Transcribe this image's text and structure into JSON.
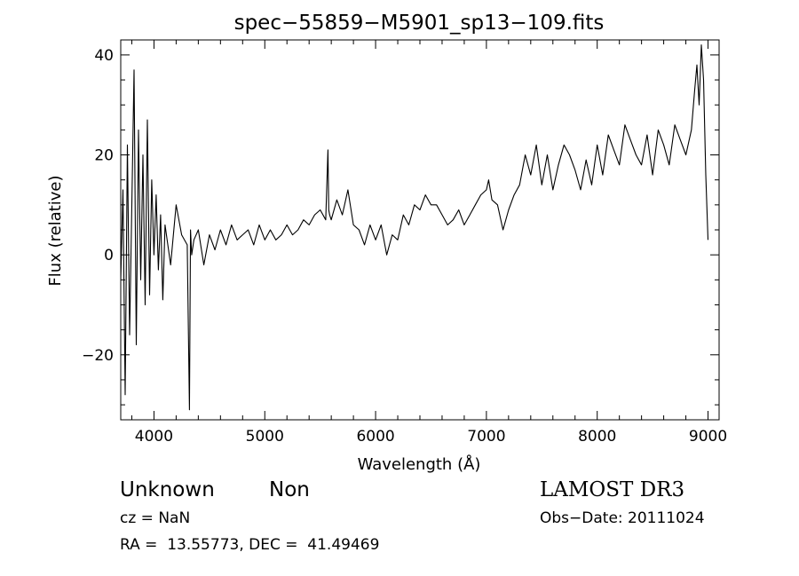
{
  "chart_data": {
    "type": "line",
    "title": "spec−55859−M5901_sp13−109.fits",
    "xlabel": "Wavelength (Å)",
    "ylabel": "Flux (relative)",
    "xlim": [
      3700,
      9100
    ],
    "ylim": [
      -33,
      43
    ],
    "x_ticks": [
      4000,
      5000,
      6000,
      7000,
      8000,
      9000
    ],
    "x_tick_labels": [
      "4000",
      "5000",
      "6000",
      "7000",
      "8000",
      "9000"
    ],
    "y_ticks": [
      -20,
      0,
      20,
      40
    ],
    "y_tick_labels": [
      "−20",
      "0",
      "20",
      "40"
    ],
    "grid": false,
    "legend": "none",
    "series": [
      {
        "x": [
          3700,
          3720,
          3740,
          3760,
          3780,
          3800,
          3820,
          3840,
          3860,
          3880,
          3900,
          3920,
          3940,
          3960,
          3980,
          4000,
          4020,
          4040,
          4060,
          4080,
          4100,
          4150,
          4200,
          4250,
          4300,
          4320,
          4330,
          4340,
          4360,
          4400,
          4450,
          4500,
          4550,
          4600,
          4650,
          4700,
          4750,
          4800,
          4850,
          4900,
          4950,
          5000,
          5050,
          5100,
          5150,
          5200,
          5250,
          5300,
          5350,
          5400,
          5450,
          5500,
          5550,
          5570,
          5577,
          5585,
          5600,
          5650,
          5700,
          5750,
          5800,
          5850,
          5900,
          5950,
          6000,
          6050,
          6100,
          6150,
          6200,
          6250,
          6300,
          6350,
          6400,
          6450,
          6500,
          6550,
          6600,
          6650,
          6700,
          6750,
          6800,
          6850,
          6900,
          6950,
          7000,
          7020,
          7050,
          7100,
          7150,
          7200,
          7250,
          7300,
          7350,
          7400,
          7450,
          7500,
          7550,
          7600,
          7650,
          7700,
          7750,
          7800,
          7850,
          7900,
          7950,
          8000,
          8050,
          8100,
          8150,
          8200,
          8250,
          8300,
          8350,
          8400,
          8450,
          8500,
          8550,
          8600,
          8650,
          8700,
          8750,
          8800,
          8850,
          8880,
          8900,
          8920,
          8940,
          8960,
          8980,
          9000
        ],
        "values": [
          -5,
          13,
          -28,
          22,
          -16,
          10,
          37,
          -18,
          25,
          -5,
          20,
          -10,
          27,
          -8,
          15,
          0,
          12,
          -3,
          8,
          -9,
          6,
          -2,
          10,
          4,
          2,
          -31,
          5,
          0,
          3,
          5,
          -2,
          4,
          1,
          5,
          2,
          6,
          3,
          4,
          5,
          2,
          6,
          3,
          5,
          3,
          4,
          6,
          4,
          5,
          7,
          6,
          8,
          9,
          7,
          21,
          9,
          8,
          7,
          11,
          8,
          13,
          6,
          5,
          2,
          6,
          3,
          6,
          0,
          4,
          3,
          8,
          6,
          10,
          9,
          12,
          10,
          10,
          8,
          6,
          7,
          9,
          6,
          8,
          10,
          12,
          13,
          15,
          11,
          10,
          5,
          9,
          12,
          14,
          20,
          16,
          22,
          14,
          20,
          13,
          18,
          22,
          20,
          17,
          13,
          19,
          14,
          22,
          16,
          24,
          21,
          18,
          26,
          23,
          20,
          18,
          24,
          16,
          25,
          22,
          18,
          26,
          23,
          20,
          25,
          33,
          38,
          30,
          42,
          35,
          16,
          3
        ]
      }
    ]
  },
  "footer": {
    "object_class": "Unknown",
    "subclass": "Non",
    "survey": "LAMOST DR3",
    "cz": "cz = NaN",
    "obs_date": "Obs−Date: 20111024",
    "coords": "RA =  13.55773, DEC =  41.49469"
  }
}
